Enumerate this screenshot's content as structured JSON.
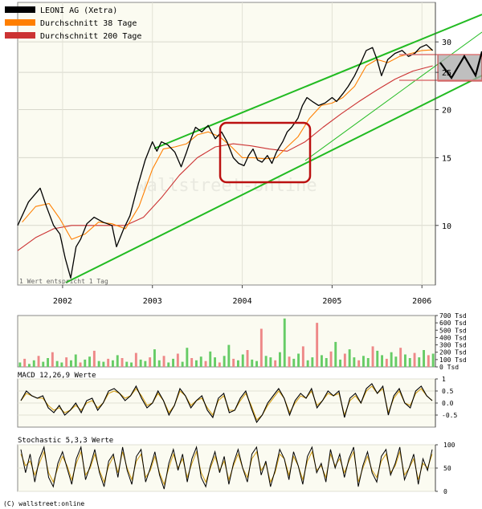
{
  "chart_data": [
    {
      "panel": "price",
      "type": "line",
      "scale": "log",
      "ylim": [
        7,
        38
      ],
      "xlim": [
        2001.5,
        2006.15
      ],
      "y_ticks": [
        10,
        15,
        20,
        25,
        30
      ],
      "x_ticks": [
        {
          "value": 2002.0,
          "label": "2002"
        },
        {
          "value": 2003.0,
          "label": "2003"
        },
        {
          "value": 2004.0,
          "label": "2004"
        },
        {
          "value": 2005.0,
          "label": "2005"
        },
        {
          "value": 2006.0,
          "label": "2006"
        }
      ],
      "legend_position": "top-left",
      "legend": [
        {
          "name": "LEONI AG (Xetra)",
          "color": "#000000"
        },
        {
          "name": "Durchschnitt 38 Tage",
          "color": "#ff7f00"
        },
        {
          "name": "Durchschnitt 200 Tage",
          "color": "#cc3333"
        }
      ],
      "note": "1 Wert entspricht 1 Tag",
      "watermark": "wallstreet-online",
      "series": [
        {
          "name": "LEONI AG (Xetra)",
          "color": "#000000",
          "x": [
            2001.5,
            2001.62,
            2001.75,
            2001.82,
            2001.9,
            2001.97,
            2002.03,
            2002.09,
            2002.15,
            2002.2,
            2002.27,
            2002.35,
            2002.45,
            2002.55,
            2002.6,
            2002.68,
            2002.75,
            2002.83,
            2002.92,
            2003.0,
            2003.05,
            2003.1,
            2003.17,
            2003.25,
            2003.32,
            2003.38,
            2003.43,
            2003.48,
            2003.55,
            2003.62,
            2003.7,
            2003.77,
            2003.83,
            2003.9,
            2003.96,
            2004.02,
            2004.07,
            2004.12,
            2004.17,
            2004.22,
            2004.28,
            2004.33,
            2004.38,
            2004.45,
            2004.5,
            2004.55,
            2004.62,
            2004.67,
            2004.72,
            2004.78,
            2004.85,
            2004.92,
            2005.0,
            2005.05,
            2005.12,
            2005.18,
            2005.25,
            2005.32,
            2005.38,
            2005.45,
            2005.5,
            2005.55,
            2005.62,
            2005.7,
            2005.78,
            2005.85,
            2005.92,
            2005.98,
            2006.05,
            2006.12
          ],
          "values": [
            10.0,
            11.5,
            12.5,
            11.2,
            10.0,
            9.5,
            8.2,
            7.3,
            8.8,
            9.2,
            10.1,
            10.5,
            10.2,
            10.0,
            8.8,
            9.8,
            10.6,
            12.5,
            14.8,
            16.5,
            15.6,
            16.5,
            16.2,
            15.5,
            14.2,
            15.5,
            16.8,
            18.0,
            17.5,
            18.2,
            16.8,
            17.5,
            16.5,
            15.0,
            14.5,
            14.3,
            15.2,
            15.8,
            14.8,
            14.6,
            15.2,
            14.5,
            15.5,
            16.5,
            17.5,
            18.0,
            19.0,
            20.5,
            21.5,
            21.0,
            20.5,
            20.8,
            21.5,
            21.0,
            22.0,
            23.0,
            24.5,
            26.5,
            28.5,
            29.0,
            27.0,
            24.5,
            27.0,
            28.0,
            28.5,
            27.5,
            28.0,
            29.0,
            29.5,
            28.5
          ]
        },
        {
          "name": "Durchschnitt 38 Tage",
          "color": "#ff7f00",
          "x": [
            2001.55,
            2001.7,
            2001.85,
            2001.97,
            2002.1,
            2002.25,
            2002.4,
            2002.55,
            2002.7,
            2002.85,
            2003.0,
            2003.12,
            2003.25,
            2003.38,
            2003.5,
            2003.62,
            2003.75,
            2003.88,
            2004.0,
            2004.12,
            2004.25,
            2004.38,
            2004.5,
            2004.62,
            2004.75,
            2004.88,
            2005.0,
            2005.12,
            2005.25,
            2005.38,
            2005.5,
            2005.62,
            2005.75,
            2005.88,
            2006.0,
            2006.12
          ],
          "values": [
            10.2,
            11.2,
            11.4,
            10.4,
            9.2,
            9.5,
            10.2,
            10.1,
            9.8,
            11.2,
            14.0,
            15.8,
            16.0,
            16.3,
            17.2,
            17.5,
            17.0,
            16.0,
            15.0,
            15.0,
            14.9,
            15.0,
            16.0,
            17.0,
            19.0,
            20.5,
            20.8,
            21.5,
            23.0,
            26.0,
            27.0,
            26.5,
            27.5,
            28.0,
            28.5,
            28.6
          ]
        },
        {
          "name": "Durchschnitt 200 Tage",
          "color": "#cc3333",
          "x": [
            2001.5,
            2001.7,
            2001.9,
            2002.1,
            2002.3,
            2002.5,
            2002.7,
            2002.9,
            2003.1,
            2003.3,
            2003.5,
            2003.7,
            2003.9,
            2004.1,
            2004.3,
            2004.5,
            2004.7,
            2004.9,
            2005.1,
            2005.3,
            2005.5,
            2005.7,
            2005.9,
            2006.12
          ],
          "values": [
            8.6,
            9.3,
            9.8,
            10.0,
            10.0,
            10.0,
            10.0,
            10.5,
            11.8,
            13.5,
            15.0,
            16.0,
            16.3,
            16.1,
            15.8,
            15.6,
            16.5,
            18.0,
            19.5,
            21.0,
            22.5,
            24.0,
            25.2,
            26.0
          ]
        }
      ]
    },
    {
      "panel": "volume",
      "type": "bar",
      "ylim": [
        0,
        700
      ],
      "y_ticks": [
        {
          "value": 700,
          "label": "700 Tsd"
        },
        {
          "value": 600,
          "label": "600 Tsd"
        },
        {
          "value": 500,
          "label": "500 Tsd"
        },
        {
          "value": 400,
          "label": "400 Tsd"
        },
        {
          "value": 300,
          "label": "300 Tsd"
        },
        {
          "value": 200,
          "label": "200 Tsd"
        },
        {
          "value": 100,
          "label": "100 Tsd"
        },
        {
          "value": 0,
          "label": "0 Tsd"
        }
      ],
      "up_color": "#66cc66",
      "down_color": "#ee8888",
      "series": [
        {
          "name": "volume",
          "values": [
            60,
            110,
            40,
            90,
            150,
            70,
            120,
            200,
            80,
            60,
            130,
            90,
            170,
            60,
            100,
            140,
            220,
            80,
            70,
            110,
            90,
            160,
            120,
            70,
            60,
            190,
            100,
            80,
            130,
            240,
            90,
            150,
            60,
            110,
            180,
            70,
            260,
            120,
            90,
            140,
            80,
            210,
            130,
            60,
            150,
            300,
            110,
            90,
            170,
            230,
            100,
            80,
            520,
            150,
            130,
            90,
            200,
            660,
            140,
            110,
            180,
            280,
            90,
            130,
            600,
            160,
            120,
            210,
            340,
            100,
            180,
            240,
            130,
            90,
            150,
            120,
            280,
            220,
            160,
            110,
            200,
            140,
            260,
            170,
            120,
            190,
            130,
            230,
            160,
            180
          ]
        }
      ]
    },
    {
      "panel": "macd",
      "type": "line",
      "title": "MACD 12,26,9 Werte",
      "ylim": [
        -1,
        1
      ],
      "y_ticks": [
        {
          "value": 1,
          "label": "1"
        },
        {
          "value": 0.5,
          "label": "0.5"
        },
        {
          "value": 0,
          "label": "0.0"
        },
        {
          "value": -0.5,
          "label": "-0.5"
        }
      ],
      "series": [
        {
          "name": "macd",
          "color": "#000000",
          "values": [
            0.1,
            0.5,
            0.3,
            0.2,
            0.3,
            -0.2,
            -0.4,
            -0.1,
            -0.5,
            -0.3,
            0.0,
            -0.4,
            0.1,
            0.2,
            -0.3,
            0.0,
            0.5,
            0.6,
            0.4,
            0.1,
            0.3,
            0.7,
            0.2,
            -0.2,
            0.0,
            0.5,
            0.1,
            -0.5,
            -0.1,
            0.6,
            0.3,
            -0.2,
            0.1,
            0.3,
            -0.3,
            -0.6,
            0.2,
            0.4,
            -0.4,
            -0.3,
            0.2,
            0.5,
            -0.2,
            -0.8,
            -0.5,
            0.0,
            0.3,
            0.6,
            0.2,
            -0.5,
            0.1,
            0.4,
            0.2,
            0.6,
            -0.2,
            0.1,
            0.5,
            0.3,
            0.5,
            -0.6,
            0.2,
            0.4,
            0.0,
            0.6,
            0.8,
            0.4,
            0.7,
            -0.5,
            0.3,
            0.6,
            0.0,
            -0.2,
            0.5,
            0.7,
            0.3,
            0.1
          ]
        },
        {
          "name": "signal",
          "color": "#d4a017",
          "values": [
            0.1,
            0.4,
            0.3,
            0.2,
            0.2,
            -0.1,
            -0.3,
            -0.2,
            -0.4,
            -0.3,
            -0.1,
            -0.3,
            0.0,
            0.1,
            -0.2,
            0.0,
            0.4,
            0.5,
            0.4,
            0.2,
            0.3,
            0.6,
            0.3,
            -0.1,
            0.0,
            0.4,
            0.1,
            -0.4,
            -0.1,
            0.5,
            0.3,
            -0.1,
            0.1,
            0.2,
            -0.2,
            -0.5,
            0.1,
            0.3,
            -0.3,
            -0.3,
            0.1,
            0.4,
            -0.1,
            -0.7,
            -0.5,
            -0.1,
            0.2,
            0.5,
            0.2,
            -0.4,
            0.0,
            0.3,
            0.2,
            0.5,
            -0.1,
            0.1,
            0.4,
            0.3,
            0.4,
            -0.5,
            0.1,
            0.3,
            0.0,
            0.5,
            0.7,
            0.4,
            0.6,
            -0.4,
            0.2,
            0.5,
            0.0,
            -0.1,
            0.4,
            0.6,
            0.3,
            0.1
          ]
        }
      ]
    },
    {
      "panel": "stochastic",
      "type": "line",
      "title": "Stochastic 5,3,3 Werte",
      "ylim": [
        0,
        100
      ],
      "y_ticks": [
        {
          "value": 100,
          "label": "100"
        },
        {
          "value": 50,
          "label": "50"
        },
        {
          "value": 0,
          "label": "0"
        }
      ],
      "series": [
        {
          "name": "%K",
          "color": "#000000",
          "values": [
            90,
            40,
            80,
            20,
            70,
            95,
            30,
            10,
            60,
            85,
            50,
            15,
            70,
            95,
            25,
            55,
            90,
            40,
            10,
            65,
            80,
            30,
            95,
            45,
            15,
            75,
            90,
            20,
            50,
            85,
            35,
            5,
            60,
            90,
            45,
            80,
            20,
            70,
            95,
            30,
            10,
            55,
            85,
            40,
            75,
            15,
            60,
            90,
            50,
            20,
            80,
            95,
            35,
            65,
            10,
            45,
            90,
            70,
            25,
            85,
            55,
            15,
            75,
            95,
            40,
            60,
            20,
            90,
            50,
            80,
            30,
            70,
            95,
            10,
            55,
            85,
            40,
            20,
            75,
            90,
            35,
            60,
            95,
            25,
            50,
            80,
            15,
            70,
            45,
            90
          ]
        },
        {
          "name": "%D",
          "color": "#d4a017",
          "values": [
            80,
            55,
            65,
            35,
            60,
            85,
            40,
            20,
            50,
            75,
            55,
            25,
            60,
            85,
            35,
            50,
            80,
            45,
            20,
            55,
            75,
            40,
            85,
            50,
            25,
            65,
            80,
            30,
            45,
            75,
            40,
            15,
            50,
            80,
            50,
            70,
            30,
            60,
            85,
            40,
            20,
            50,
            75,
            45,
            65,
            25,
            55,
            80,
            50,
            30,
            70,
            85,
            45,
            60,
            20,
            40,
            80,
            70,
            35,
            75,
            55,
            25,
            65,
            85,
            45,
            55,
            30,
            80,
            55,
            70,
            40,
            65,
            85,
            20,
            50,
            75,
            45,
            30,
            65,
            80,
            40,
            55,
            85,
            35,
            50,
            70,
            25,
            60,
            50,
            80
          ]
        }
      ]
    }
  ],
  "copyright": "(C) wallstreet:online"
}
